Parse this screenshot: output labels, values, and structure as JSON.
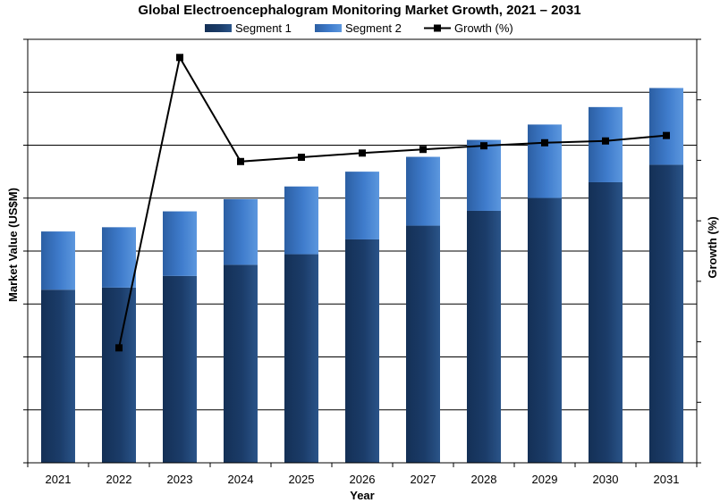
{
  "chart_data": {
    "type": "bar",
    "title": "Global Electroencephalogram Monitoring Market Growth, 2021 – 2031",
    "xlabel": "Year",
    "ylabel": "Market Value (US$M)",
    "y2label": "Growth (%)",
    "categories": [
      "2021",
      "2022",
      "2023",
      "2024",
      "2025",
      "2026",
      "2027",
      "2028",
      "2029",
      "2030",
      "2031"
    ],
    "ylim": [
      0,
      8
    ],
    "y2lim": [
      0,
      7
    ],
    "grid": true,
    "legend_position": "top",
    "series": [
      {
        "name": "Segment 1",
        "type": "bar",
        "stacked": true,
        "axis": "left",
        "values": [
          3.27,
          3.31,
          3.53,
          3.74,
          3.94,
          4.22,
          4.48,
          4.76,
          5.0,
          5.3,
          5.63
        ]
      },
      {
        "name": "Segment 2",
        "type": "bar",
        "stacked": true,
        "axis": "left",
        "values": [
          1.1,
          1.14,
          1.22,
          1.24,
          1.28,
          1.28,
          1.3,
          1.34,
          1.39,
          1.42,
          1.45
        ]
      },
      {
        "name": "Growth (%)",
        "type": "line",
        "axis": "right",
        "values": [
          null,
          1.9,
          6.7,
          4.98,
          5.05,
          5.12,
          5.18,
          5.24,
          5.29,
          5.32,
          5.41
        ]
      }
    ],
    "colors": {
      "segment1": "#1a3a66",
      "segment2": "#3f7ccc",
      "growth": "#000000",
      "grid": "#000000"
    }
  }
}
